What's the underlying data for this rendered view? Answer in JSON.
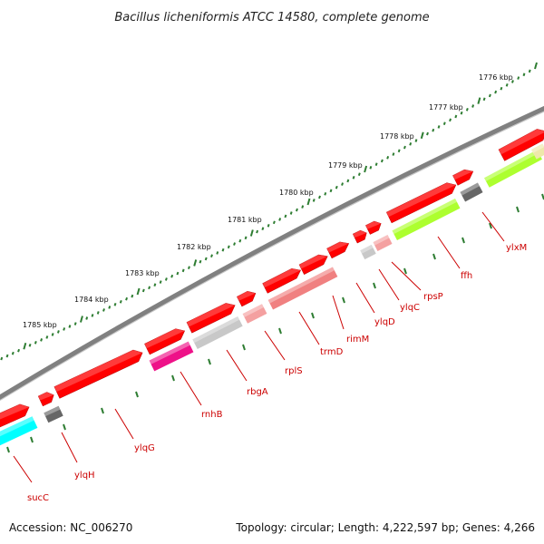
{
  "title": "Bacillus licheniformis ATCC 14580, complete genome",
  "footer": {
    "accession": "Accession: NC_006270",
    "summary": "Topology: circular; Length: 4,222,597 bp; Genes: 4,266"
  },
  "scale_labels": [
    "1776 kbp",
    "1777 kbp",
    "1778 kbp",
    "1779 kbp",
    "1780 kbp",
    "1781 kbp",
    "1782 kbp",
    "1783 kbp",
    "1784 kbp",
    "1785 kbp"
  ],
  "gene_labels": [
    "ylxM",
    "ffh",
    "rpsP",
    "ylqC",
    "ylqD",
    "rimM",
    "trmD",
    "rplS",
    "rbgA",
    "rnhB",
    "ylqG",
    "ylqH",
    "sucC"
  ],
  "colors": {
    "forward_gene": "#ff0000",
    "backbone": "#808080",
    "tick": "#2e7d32",
    "label": "#cc0000",
    "cyan": "#00ffff",
    "magenta": "#ee1188",
    "salmon": "#f08080",
    "pink": "#f4a0a0",
    "lightgray": "#c8c8c8",
    "darkgray": "#666666",
    "lime": "#adff2f",
    "khaki": "#eee8aa"
  }
}
